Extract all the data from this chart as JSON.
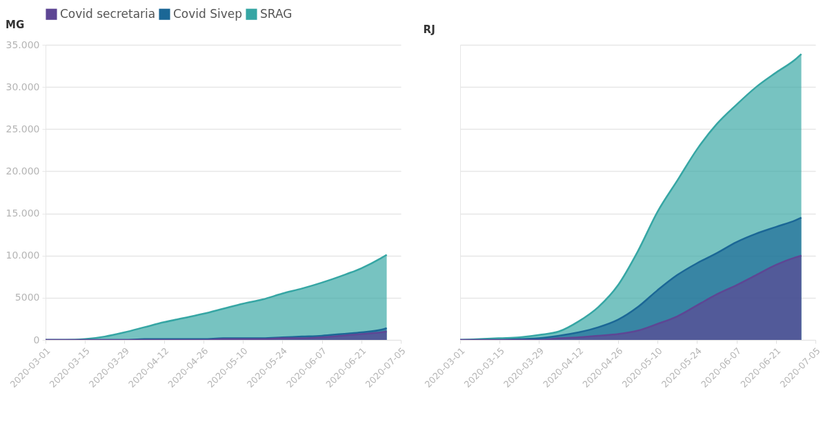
{
  "chart_data": [
    {
      "type": "area",
      "title": "MG",
      "legend": "top left",
      "grid": "y",
      "x": [
        "2020-03-01",
        "2020-03-08",
        "2020-03-15",
        "2020-03-22",
        "2020-03-29",
        "2020-04-05",
        "2020-04-12",
        "2020-04-19",
        "2020-04-26",
        "2020-05-03",
        "2020-05-10",
        "2020-05-17",
        "2020-05-24",
        "2020-05-31",
        "2020-06-07",
        "2020-06-14",
        "2020-06-21",
        "2020-06-28",
        "2020-06-30"
      ],
      "series": [
        {
          "name": "Covid secretaria",
          "color": "#5e4694",
          "values": [
            0,
            0,
            0,
            0,
            0,
            0,
            0,
            0,
            0,
            100,
            100,
            100,
            200,
            200,
            300,
            500,
            700,
            900,
            1000
          ]
        },
        {
          "name": "Covid Sivep",
          "color": "#1b6796",
          "values": [
            0,
            0,
            0,
            0,
            0,
            100,
            100,
            100,
            100,
            200,
            200,
            200,
            300,
            400,
            500,
            700,
            900,
            1200,
            1400
          ]
        },
        {
          "name": "SRAG",
          "color": "#36a6a4",
          "values": [
            0,
            0,
            100,
            400,
            900,
            1500,
            2100,
            2600,
            3100,
            3700,
            4300,
            4800,
            5500,
            6100,
            6800,
            7600,
            8500,
            9700,
            10100
          ]
        }
      ],
      "xlim": [
        "2020-03-01",
        "2020-07-05"
      ],
      "xticks": [
        "2020-03-01",
        "2020-03-15",
        "2020-03-29",
        "2020-04-12",
        "2020-04-26",
        "2020-05-10",
        "2020-05-24",
        "2020-06-07",
        "2020-06-21",
        "2020-07-05"
      ],
      "ylim": [
        0,
        35000
      ],
      "yticks": [
        0,
        5000,
        {
          "value": 10000,
          "label": "10.000"
        },
        {
          "value": 15000,
          "label": "15.000"
        },
        {
          "value": 20000,
          "label": "20.000"
        },
        {
          "value": 25000,
          "label": "25.000"
        },
        {
          "value": 30000,
          "label": "30.000"
        },
        {
          "value": 35000,
          "label": "35.000"
        }
      ]
    },
    {
      "type": "area",
      "title": "RJ",
      "grid": "y",
      "tick_labels": "x",
      "x": [
        "2020-03-01",
        "2020-03-08",
        "2020-03-15",
        "2020-03-22",
        "2020-03-29",
        "2020-04-05",
        "2020-04-12",
        "2020-04-19",
        "2020-04-26",
        "2020-05-03",
        "2020-05-10",
        "2020-05-17",
        "2020-05-24",
        "2020-05-31",
        "2020-06-07",
        "2020-06-14",
        "2020-06-21",
        "2020-06-28",
        "2020-06-30"
      ],
      "series": [
        {
          "name": "Covid secretaria",
          "color": "#5e4694",
          "values": [
            0,
            0,
            0,
            0,
            0,
            200,
            300,
            500,
            700,
            1100,
            1900,
            2800,
            4100,
            5400,
            6500,
            7700,
            8900,
            9800,
            10000
          ]
        },
        {
          "name": "Covid Sivep",
          "color": "#1b6796",
          "values": [
            0,
            0,
            0,
            100,
            200,
            500,
            900,
            1500,
            2400,
            3900,
            5900,
            7700,
            9100,
            10300,
            11600,
            12600,
            13400,
            14200,
            14500
          ]
        },
        {
          "name": "SRAG",
          "color": "#36a6a4",
          "values": [
            0,
            100,
            200,
            300,
            600,
            1000,
            2200,
            3900,
            6500,
            10500,
            15200,
            18900,
            22600,
            25600,
            27900,
            30000,
            31700,
            33300,
            33900
          ]
        }
      ],
      "xlim": [
        "2020-03-01",
        "2020-07-05"
      ],
      "xticks": [
        "2020-03-01",
        "2020-03-15",
        "2020-03-29",
        "2020-04-12",
        "2020-04-26",
        "2020-05-10",
        "2020-05-24",
        "2020-06-07",
        "2020-06-21",
        "2020-07-05"
      ],
      "ylim": [
        0,
        35000
      ],
      "yticks": [
        0,
        5000,
        10000,
        15000,
        20000,
        25000,
        30000,
        35000
      ]
    }
  ]
}
